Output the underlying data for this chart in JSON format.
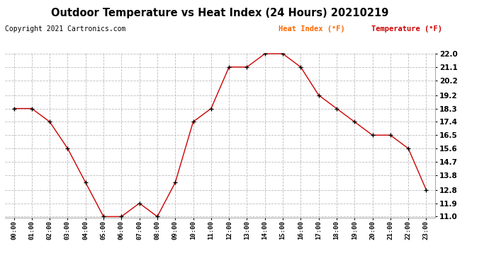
{
  "title": "Outdoor Temperature vs Heat Index (24 Hours) 20210219",
  "copyright": "Copyright 2021 Cartronics.com",
  "legend_heat": "Heat Index (°F)",
  "legend_temp": "Temperature (°F)",
  "hours": [
    "00:00",
    "01:00",
    "02:00",
    "03:00",
    "04:00",
    "05:00",
    "06:00",
    "07:00",
    "08:00",
    "09:00",
    "10:00",
    "11:00",
    "12:00",
    "13:00",
    "14:00",
    "15:00",
    "16:00",
    "17:00",
    "18:00",
    "19:00",
    "20:00",
    "21:00",
    "22:00",
    "23:00"
  ],
  "temperature": [
    18.3,
    18.3,
    17.4,
    15.6,
    13.3,
    11.0,
    11.0,
    11.9,
    11.0,
    13.3,
    17.4,
    18.3,
    21.1,
    21.1,
    22.0,
    22.0,
    21.1,
    19.2,
    18.3,
    17.4,
    16.5,
    16.5,
    15.6,
    12.8
  ],
  "line_color": "#cc0000",
  "marker_color": "#000000",
  "title_color": "#000000",
  "copyright_color": "#000000",
  "legend_heat_color": "#ff6600",
  "legend_temp_color": "#cc0000",
  "bg_color": "#ffffff",
  "grid_color": "#bbbbbb",
  "ymin": 11.0,
  "ymax": 22.0,
  "yticks": [
    11.0,
    11.9,
    12.8,
    13.8,
    14.7,
    15.6,
    16.5,
    17.4,
    18.3,
    19.2,
    20.2,
    21.1,
    22.0
  ]
}
